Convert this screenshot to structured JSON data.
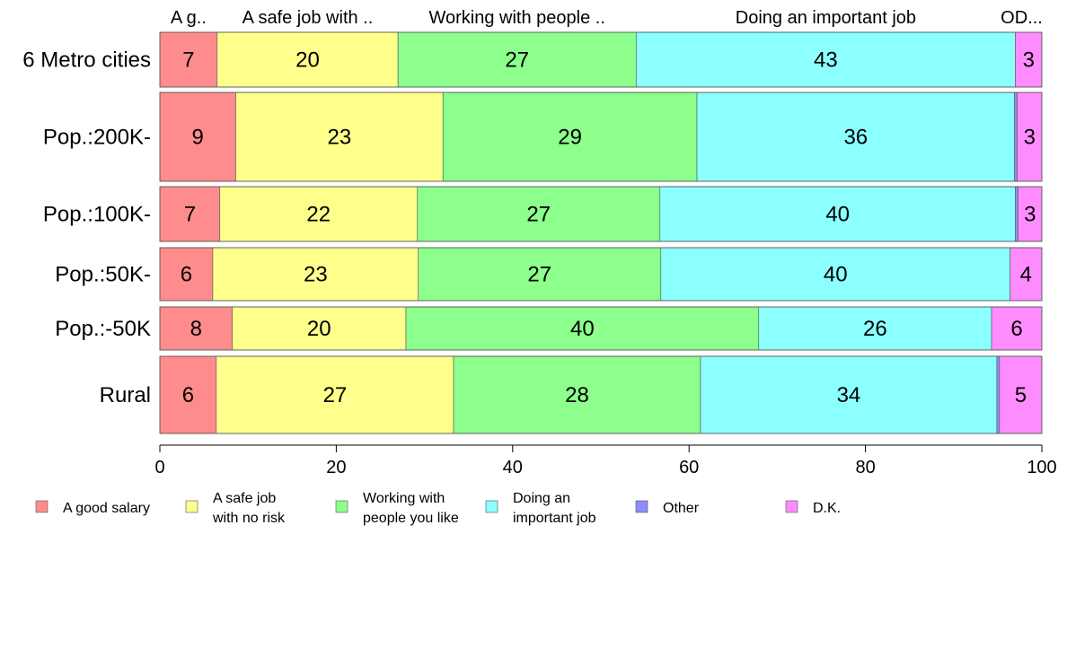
{
  "chart_data": {
    "type": "bar",
    "orientation": "horizontal",
    "stacked": true,
    "categories": [
      "6 Metro cities",
      "Pop.:200K-",
      "Pop.:100K-",
      "Pop.:50K-",
      "Pop.:-50K",
      "Rural"
    ],
    "series": [
      {
        "name": "A good salary",
        "values": [
          6.5,
          8.6,
          6.8,
          6.0,
          8.2,
          6.4
        ],
        "labels": [
          "7",
          "9",
          "7",
          "6",
          "8",
          "6"
        ],
        "color": "#ff8c8c"
      },
      {
        "name": "A safe job with no risk",
        "values": [
          20.5,
          23.5,
          22.4,
          23.3,
          19.7,
          26.9
        ],
        "labels": [
          "20",
          "23",
          "22",
          "23",
          "20",
          "27"
        ],
        "color": "#ffff8c"
      },
      {
        "name": "Working with people you like",
        "values": [
          27.0,
          28.8,
          27.5,
          27.5,
          40.0,
          28.0
        ],
        "labels": [
          "27",
          "29",
          "27",
          "27",
          "40",
          "28"
        ],
        "color": "#8cff8c"
      },
      {
        "name": "Doing an important job",
        "values": [
          43.0,
          36.0,
          40.3,
          39.6,
          26.4,
          33.6
        ],
        "labels": [
          "43",
          "36",
          "40",
          "40",
          "26",
          "34"
        ],
        "color": "#8cffff"
      },
      {
        "name": "Other",
        "values": [
          0.0,
          0.3,
          0.3,
          0.0,
          0.0,
          0.3
        ],
        "labels": [
          "",
          "",
          "",
          "",
          "",
          ""
        ],
        "color": "#8c8cff"
      },
      {
        "name": "D.K.",
        "values": [
          3.0,
          2.8,
          2.7,
          3.6,
          5.7,
          4.8
        ],
        "labels": [
          "3",
          "3",
          "3",
          "4",
          "6",
          "5"
        ],
        "color": "#ff8cff"
      }
    ],
    "top_labels": [
      "A g..",
      "A safe job with ..",
      "Working with people ..",
      "Doing an important job",
      "O..",
      "D..."
    ],
    "legend": [
      {
        "lines": [
          "A good salary"
        ]
      },
      {
        "lines": [
          "A safe job",
          "with no risk"
        ]
      },
      {
        "lines": [
          "Working with",
          "people you like"
        ]
      },
      {
        "lines": [
          "Doing an",
          "important job"
        ]
      },
      {
        "lines": [
          "Other"
        ]
      },
      {
        "lines": [
          "D.K."
        ]
      }
    ],
    "x_ticks": [
      0,
      20,
      40,
      60,
      80,
      100
    ],
    "xlim": [
      0,
      100
    ],
    "legend_position": "bottom",
    "grid": false
  }
}
